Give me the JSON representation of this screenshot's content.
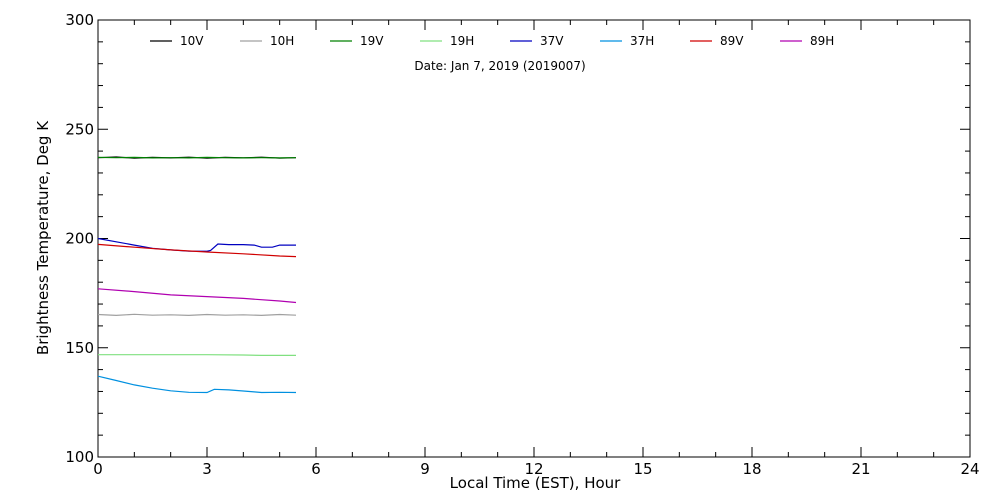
{
  "chart_data": {
    "type": "line",
    "title": "",
    "annotation": "Date: Jan  7, 2019 (2019007)",
    "xlabel": "Local Time (EST), Hour",
    "ylabel": "Brightness Temperature, Deg K",
    "xlim": [
      0,
      24
    ],
    "ylim": [
      100,
      300
    ],
    "xticks": [
      0,
      3,
      6,
      9,
      12,
      15,
      18,
      21,
      24
    ],
    "yticks": [
      100,
      150,
      200,
      250,
      300
    ],
    "legend_position": "top",
    "series": [
      {
        "name": "10V",
        "color": "#000000",
        "x": [
          0,
          0.5,
          1,
          1.5,
          2,
          2.5,
          3,
          3.5,
          4,
          4.5,
          5,
          5.45
        ],
        "y": [
          237,
          237.3,
          236.8,
          237.1,
          236.9,
          237.2,
          236.8,
          237.1,
          236.9,
          237.2,
          236.8,
          237
        ]
      },
      {
        "name": "10H",
        "color": "#a0a0a0",
        "x": [
          0,
          0.5,
          1,
          1.5,
          2,
          2.5,
          3,
          3.5,
          4,
          4.5,
          5,
          5.45
        ],
        "y": [
          165.2,
          164.8,
          165.3,
          164.9,
          165.1,
          164.8,
          165.2,
          164.9,
          165.1,
          164.8,
          165.2,
          164.9
        ]
      },
      {
        "name": "19V",
        "color": "#008000",
        "x": [
          0,
          0.5,
          1,
          1.5,
          2,
          2.5,
          3,
          3.5,
          4,
          4.5,
          5,
          5.45
        ],
        "y": [
          237.1,
          237,
          237.1,
          236.9,
          237,
          236.9,
          237.1,
          237,
          236.9,
          237,
          236.9,
          237
        ]
      },
      {
        "name": "19H",
        "color": "#80e080",
        "x": [
          0,
          1,
          2,
          3,
          4,
          4.5,
          5,
          5.45
        ],
        "y": [
          146.8,
          146.8,
          146.8,
          146.8,
          146.7,
          146.5,
          146.5,
          146.5
        ]
      },
      {
        "name": "37V",
        "color": "#0000c0",
        "x": [
          0,
          0.5,
          1,
          1.5,
          2,
          2.5,
          3,
          3.1,
          3.3,
          3.6,
          4,
          4.3,
          4.5,
          4.8,
          5,
          5.45
        ],
        "y": [
          200,
          198.5,
          197,
          195.5,
          194.8,
          194.2,
          194.2,
          194.5,
          197.5,
          197.2,
          197.2,
          197,
          196,
          196,
          197,
          197
        ]
      },
      {
        "name": "37H",
        "color": "#0090e0",
        "x": [
          0,
          0.5,
          1,
          1.5,
          2,
          2.5,
          3,
          3.2,
          3.6,
          4,
          4.3,
          4.5,
          5,
          5.45
        ],
        "y": [
          137,
          135,
          133,
          131.5,
          130.3,
          129.6,
          129.5,
          131,
          130.7,
          130.2,
          129.8,
          129.5,
          129.6,
          129.5
        ]
      },
      {
        "name": "89V",
        "color": "#d00000",
        "x": [
          0,
          1,
          2,
          3,
          4,
          5,
          5.45
        ],
        "y": [
          197.3,
          196,
          194.8,
          193.8,
          193,
          192,
          191.7
        ]
      },
      {
        "name": "89H",
        "color": "#b000b0",
        "x": [
          0,
          1,
          2,
          3,
          4,
          5,
          5.45
        ],
        "y": [
          177,
          175.7,
          174.2,
          173.4,
          172.6,
          171.4,
          170.7
        ]
      }
    ]
  }
}
